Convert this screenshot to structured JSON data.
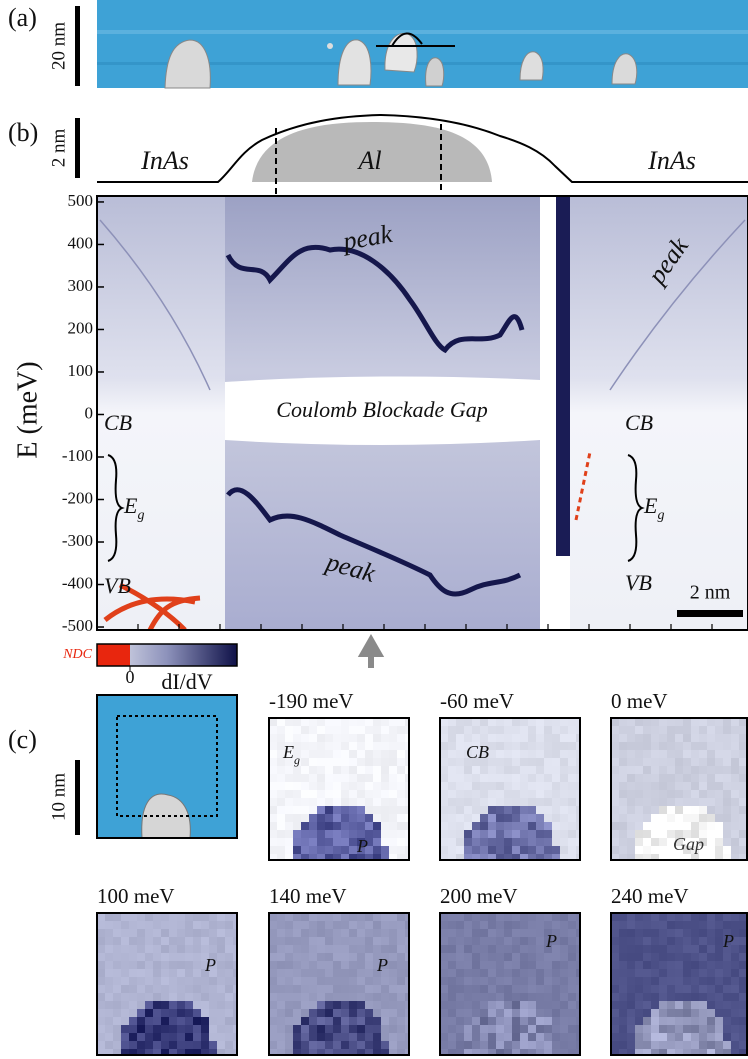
{
  "panel_a": {
    "label": "(a)",
    "scale_bar": "20 nm"
  },
  "panel_b": {
    "label": "(b)",
    "scale_bar": "2 nm",
    "profile_labels": [
      "InAs",
      "Al",
      "InAs"
    ]
  },
  "chart_data": {
    "type": "heatmap",
    "ylabel": "E (meV)",
    "ylim": [
      -507,
      514
    ],
    "yticks": [
      500,
      400,
      300,
      200,
      100,
      0,
      -100,
      -200,
      -300,
      -400,
      -500
    ],
    "annotations": {
      "peak_upper": "peak",
      "peak_lower": "peak",
      "peak_right": "peak",
      "gap": "Coulomb Blockade Gap",
      "cb_left": "CB",
      "cb_right": "CB",
      "vb_left": "VB",
      "vb_right": "VB",
      "eg_left": {
        "main": "E",
        "sub": "g"
      },
      "eg_right": {
        "main": "E",
        "sub": "g"
      },
      "scale_bar": "2 nm"
    },
    "colorbar": {
      "label": "dI/dV",
      "ndc_label": "NDC",
      "ticks": [
        0
      ]
    }
  },
  "panel_c": {
    "label": "(c)",
    "scale_bar": "10 nm",
    "maps": [
      {
        "energy": "-190 meV",
        "labels": [
          {
            "main": "E",
            "sub": "g"
          },
          {
            "main": "P"
          }
        ]
      },
      {
        "energy": "-60 meV",
        "labels": [
          {
            "main": "CB"
          }
        ]
      },
      {
        "energy": "0 meV",
        "labels": [
          {
            "main": "Gap"
          }
        ]
      },
      {
        "energy": "100 meV",
        "labels": [
          {
            "main": "P"
          }
        ]
      },
      {
        "energy": "140 meV",
        "labels": [
          {
            "main": "P"
          }
        ]
      },
      {
        "energy": "200 meV",
        "labels": [
          {
            "main": "P"
          }
        ]
      },
      {
        "energy": "240 meV",
        "labels": [
          {
            "main": "P"
          }
        ]
      }
    ]
  }
}
